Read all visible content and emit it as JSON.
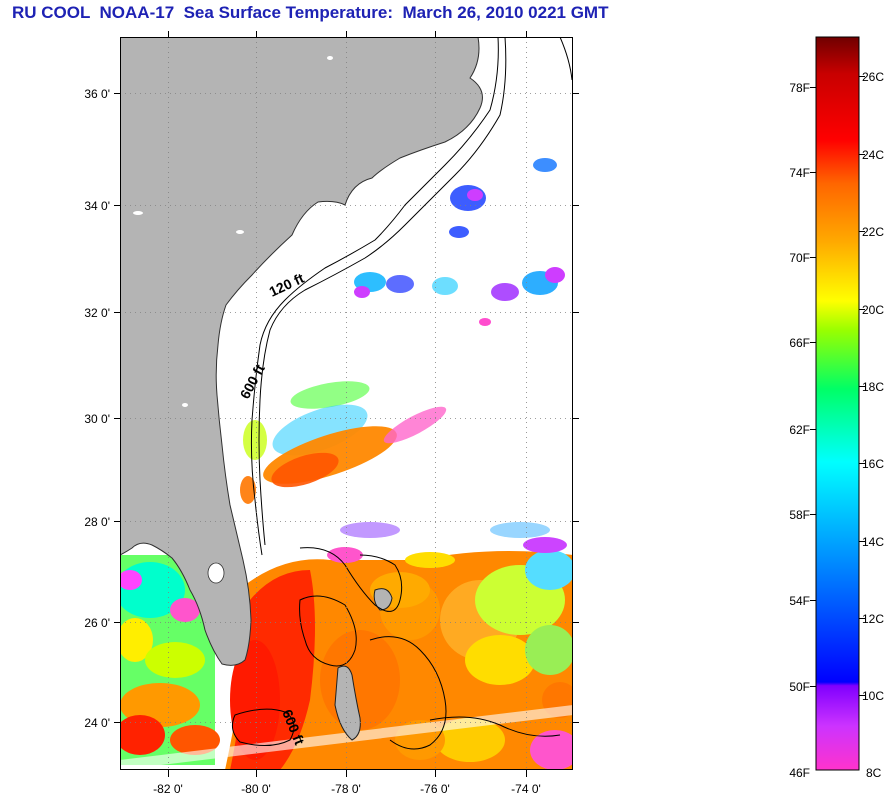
{
  "title": "RU COOL  NOAA-17  Sea Surface Temperature:  March 26, 2010 0221 GMT",
  "map": {
    "lat_ticks": [
      "36 0'",
      "34 0'",
      "32 0'",
      "30 0'",
      "28 0'",
      "26 0'",
      "24 0'"
    ],
    "lon_ticks": [
      "-82 0'",
      "-80 0'",
      "-78 0'",
      "-76 0'",
      "-74 0'"
    ],
    "contour_labels": [
      "120 ft",
      "600 ft",
      "600 ft"
    ],
    "colors": {
      "land": "#b4b4b4",
      "ocean_no_data": "#ffffff",
      "grid": "#808080"
    }
  },
  "colorbar": {
    "fahrenheit_labels": [
      "78F",
      "74F",
      "70F",
      "66F",
      "62F",
      "58F",
      "54F",
      "50F",
      "46F"
    ],
    "celsius_labels": [
      "26C",
      "24C",
      "22C",
      "20C",
      "18C",
      "16C",
      "14C",
      "12C",
      "10C",
      "8C"
    ],
    "min_label": "46F",
    "colors": [
      "#ff33cc",
      "#8800ff",
      "#0000ff",
      "#00aaff",
      "#00ffff",
      "#00ff66",
      "#99ff00",
      "#ffff00",
      "#ff9900",
      "#ff3300",
      "#ff0000",
      "#700000"
    ]
  }
}
